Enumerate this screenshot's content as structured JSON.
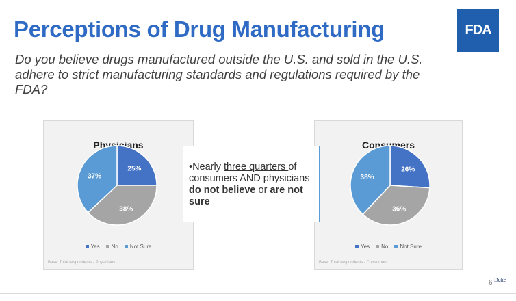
{
  "slide": {
    "title": "Perceptions of Drug Manufacturing",
    "subtitle": "Do you believe drugs manufactured outside the U.S. and sold in the U.S. adhere to strict manufacturing standards and regulations required by the FDA?",
    "logo_text": "FDA",
    "page_number": "6",
    "footer_logo_text": "Duke"
  },
  "callout": {
    "bullet": "•",
    "part1": "Nearly ",
    "underlined": "three quarters ",
    "part2": "of consumers AND physicians ",
    "bold1": "do not believe",
    "part3": " or ",
    "bold2": "are not sure"
  },
  "colors": {
    "yes": "#4472c4",
    "no": "#a5a5a5",
    "not_sure": "#5b9bd5",
    "title": "#2f6bc4",
    "callout_border": "#5b9bd5"
  },
  "chart_data": [
    {
      "type": "pie",
      "title": "Physicians",
      "categories": [
        "Yes",
        "No",
        "Not Sure"
      ],
      "values": [
        25,
        38,
        37
      ],
      "labels": [
        "25%",
        "38%",
        "37%"
      ],
      "legend_position": "bottom",
      "note": "Base: Total respondents - Physicians"
    },
    {
      "type": "pie",
      "title": "Consumers",
      "categories": [
        "Yes",
        "No",
        "Not Sure"
      ],
      "values": [
        26,
        36,
        38
      ],
      "labels": [
        "26%",
        "36%",
        "38%"
      ],
      "legend_position": "bottom",
      "note": "Base: Total respondents - Consumers"
    }
  ]
}
